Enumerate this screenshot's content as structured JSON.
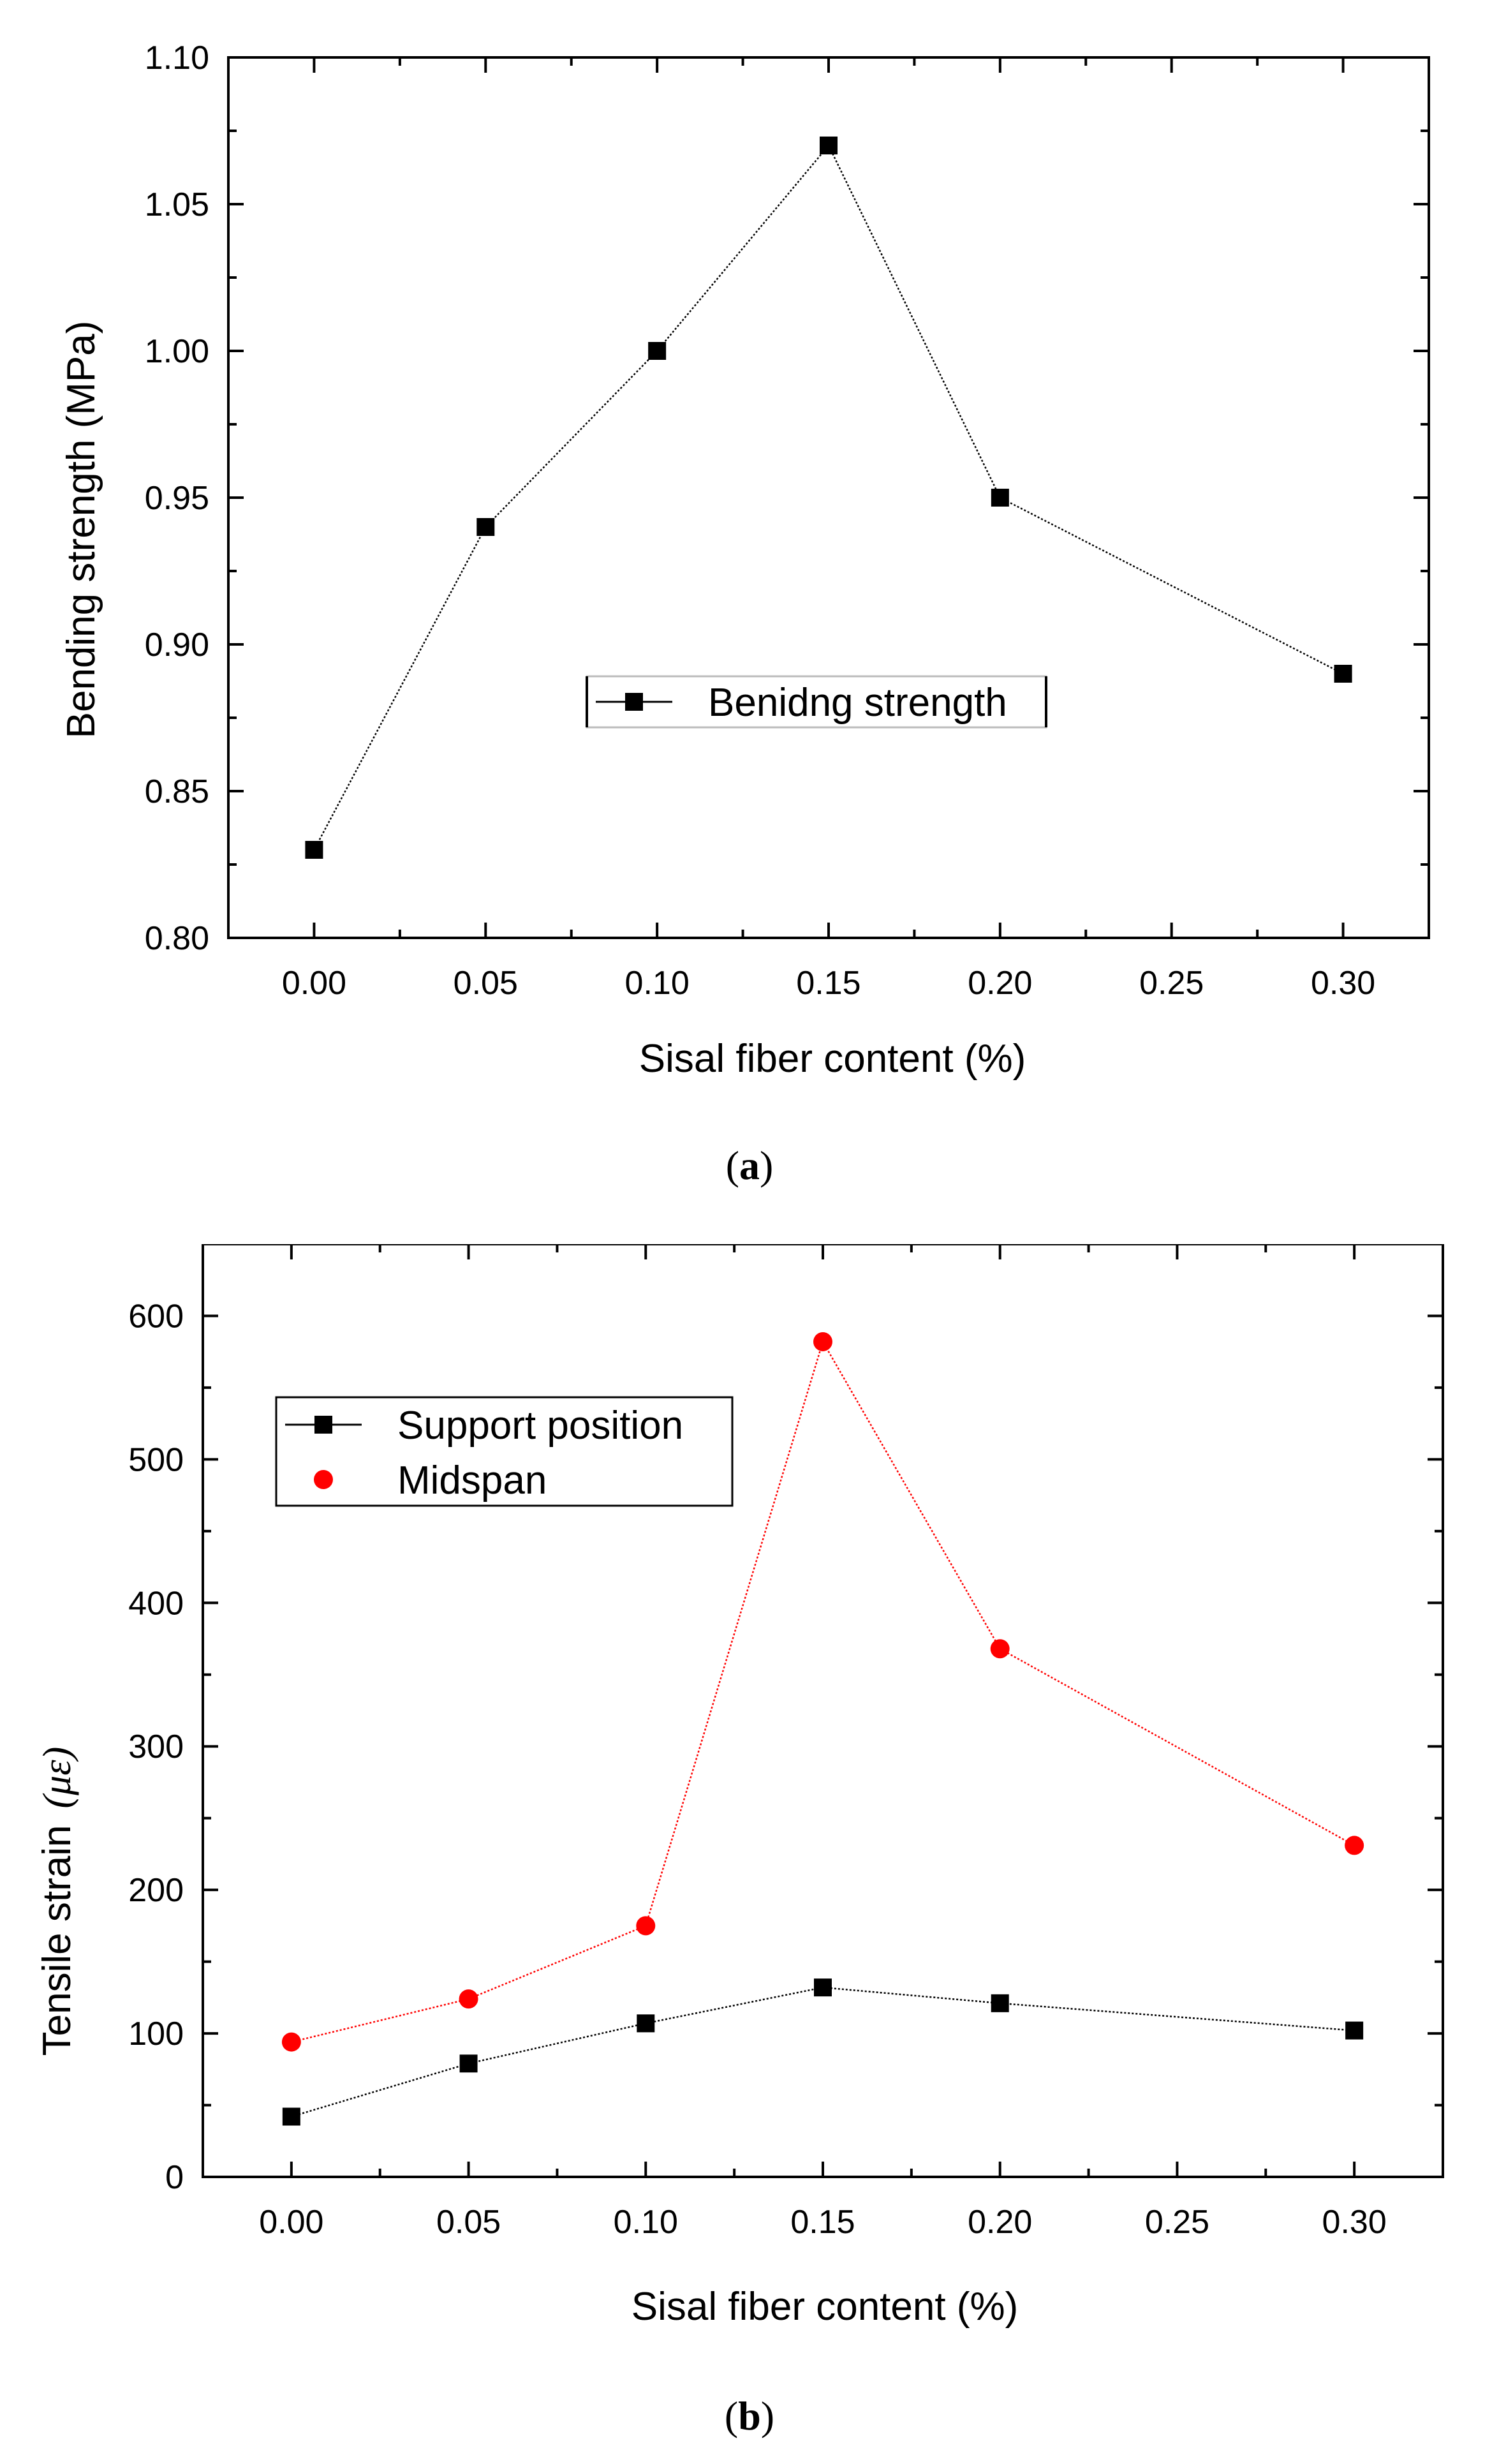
{
  "chart_data": [
    {
      "type": "line",
      "x": [
        0.0,
        0.05,
        0.1,
        0.15,
        0.2,
        0.3
      ],
      "series": [
        {
          "name": "Benidng strength",
          "marker": "square",
          "color": "#000000",
          "values": [
            0.83,
            0.94,
            1.0,
            1.07,
            0.95,
            0.89
          ]
        }
      ],
      "xlabel": "Sisal fiber content  (%)",
      "ylabel": "Bending strength  (MPa)",
      "xlim": [
        -0.025,
        0.325
      ],
      "ylim": [
        0.8,
        1.1
      ],
      "xticks": [
        0.0,
        0.05,
        0.1,
        0.15,
        0.2,
        0.25,
        0.3
      ],
      "xtick_labels": [
        "0.00",
        "0.05",
        "0.10",
        "0.15",
        "0.20",
        "0.25",
        "0.30"
      ],
      "yticks": [
        0.8,
        0.85,
        0.9,
        0.95,
        1.0,
        1.05,
        1.1
      ],
      "ytick_labels": [
        "0.80",
        "0.85",
        "0.90",
        "0.95",
        "1.00",
        "1.05",
        "1.10"
      ],
      "grid": false,
      "legend_position": "center",
      "caption_label": "a"
    },
    {
      "type": "line",
      "x": [
        0.0,
        0.05,
        0.1,
        0.15,
        0.2,
        0.3
      ],
      "series": [
        {
          "name": "Support position",
          "marker": "square",
          "color": "#000000",
          "values": [
            42,
            79,
            107,
            132,
            121,
            102
          ]
        },
        {
          "name": "Midspan",
          "marker": "circle",
          "color": "#ff0000",
          "values": [
            94,
            124,
            175,
            582,
            368,
            231
          ]
        }
      ],
      "xlabel": "Sisal fiber content  (%)",
      "ylabel_text": "Tensile strain",
      "ylabel_unit": "(με)",
      "xlim": [
        -0.025,
        0.325
      ],
      "ylim": [
        0,
        650
      ],
      "xticks": [
        0.0,
        0.05,
        0.1,
        0.15,
        0.2,
        0.25,
        0.3
      ],
      "xtick_labels": [
        "0.00",
        "0.05",
        "0.10",
        "0.15",
        "0.20",
        "0.25",
        "0.30"
      ],
      "yticks": [
        0,
        100,
        200,
        300,
        400,
        500,
        600
      ],
      "ytick_labels": [
        "0",
        "100",
        "200",
        "300",
        "400",
        "500",
        "600"
      ],
      "grid": false,
      "legend_position": "top-left",
      "caption_label": "b"
    }
  ]
}
